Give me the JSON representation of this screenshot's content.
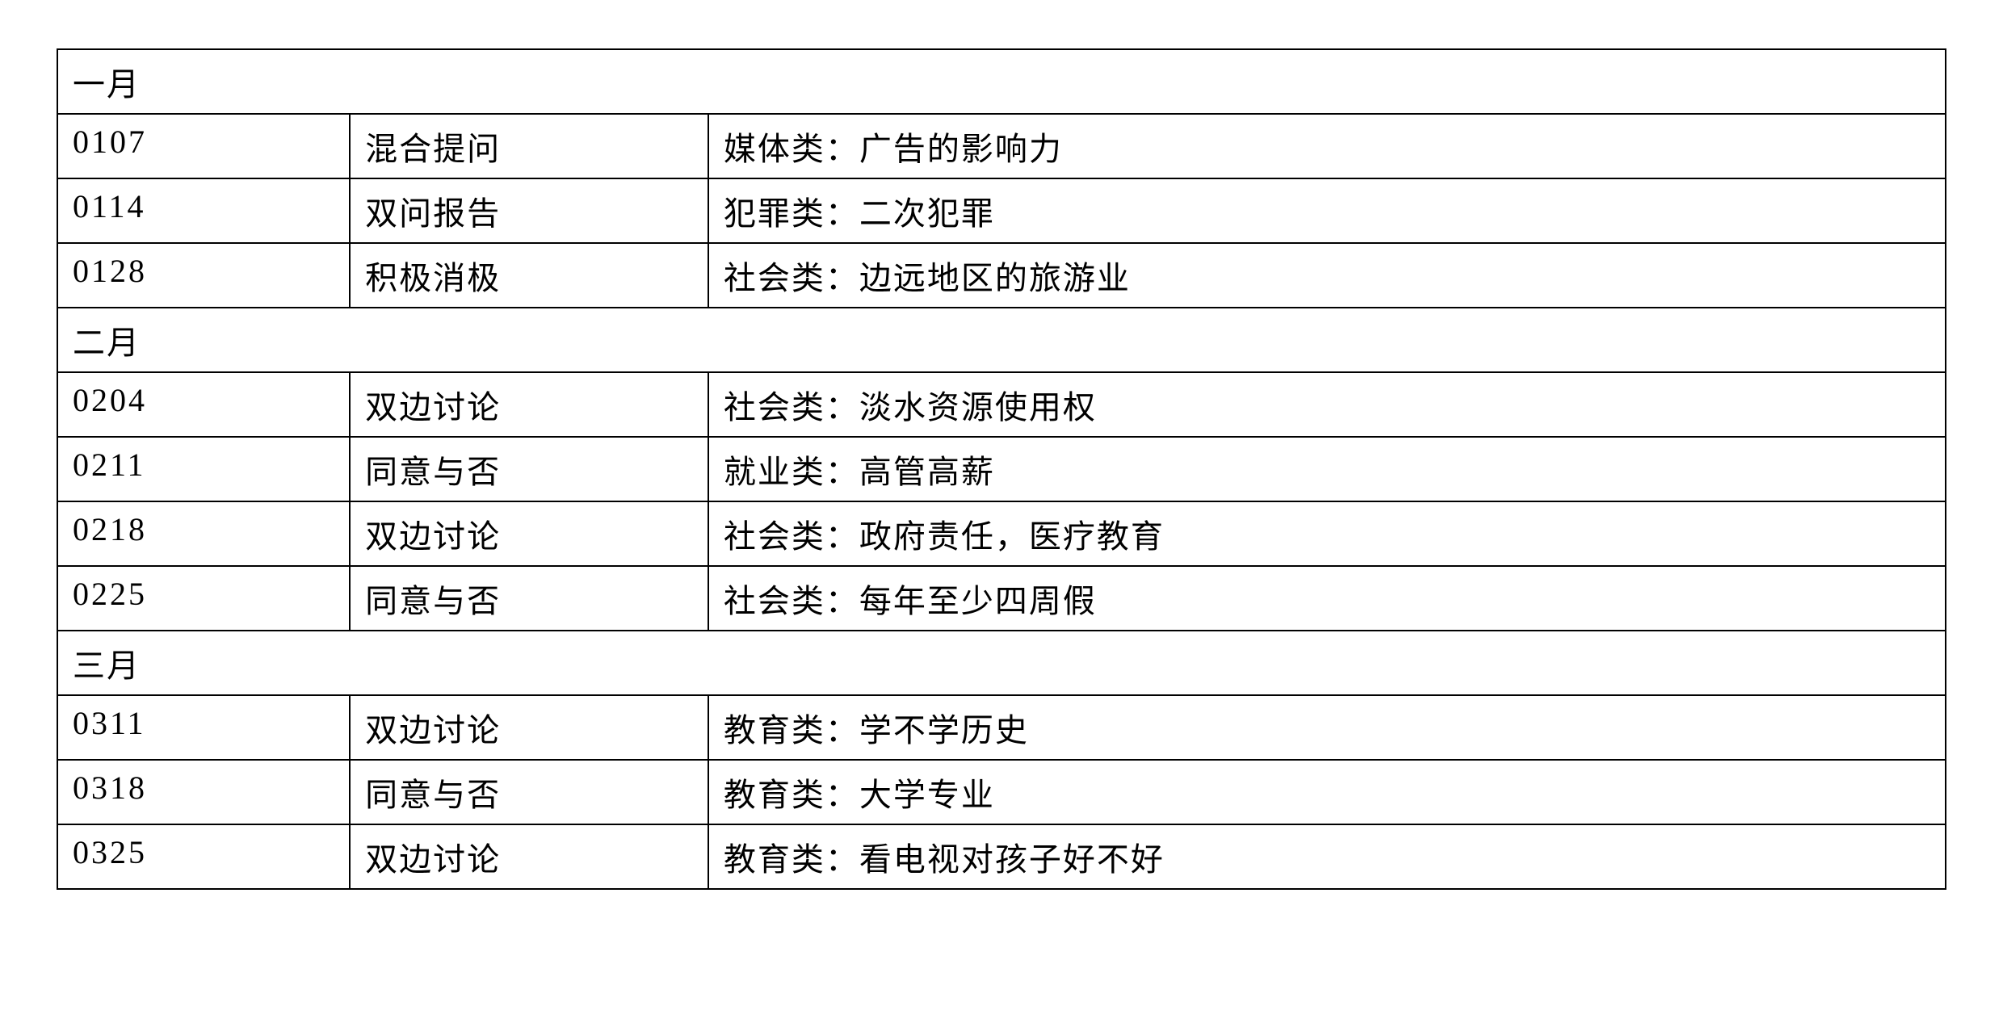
{
  "table": {
    "background_color": "#ffffff",
    "border_color": "#000000",
    "border_width": 2,
    "text_color": "#000000",
    "font_size": 40,
    "font_family": "SimSun",
    "column_widths": [
      "15.5%",
      "19%",
      "auto"
    ],
    "sections": [
      {
        "header": "一月",
        "rows": [
          {
            "date": "0107",
            "type": "混合提问",
            "topic": "媒体类：广告的影响力"
          },
          {
            "date": "0114",
            "type": "双问报告",
            "topic": "犯罪类：二次犯罪"
          },
          {
            "date": "0128",
            "type": "积极消极",
            "topic": "社会类：边远地区的旅游业"
          }
        ]
      },
      {
        "header": "二月",
        "rows": [
          {
            "date": "0204",
            "type": "双边讨论",
            "topic": "社会类：淡水资源使用权"
          },
          {
            "date": "0211",
            "type": "同意与否",
            "topic": "就业类：高管高薪"
          },
          {
            "date": "0218",
            "type": "双边讨论",
            "topic": "社会类：政府责任，医疗教育"
          },
          {
            "date": "0225",
            "type": "同意与否",
            "topic": "社会类：每年至少四周假"
          }
        ]
      },
      {
        "header": "三月",
        "rows": [
          {
            "date": "0311",
            "type": "双边讨论",
            "topic": "教育类：学不学历史"
          },
          {
            "date": "0318",
            "type": "同意与否",
            "topic": "教育类：大学专业"
          },
          {
            "date": "0325",
            "type": "双边讨论",
            "topic": "教育类：看电视对孩子好不好"
          }
        ]
      }
    ]
  }
}
